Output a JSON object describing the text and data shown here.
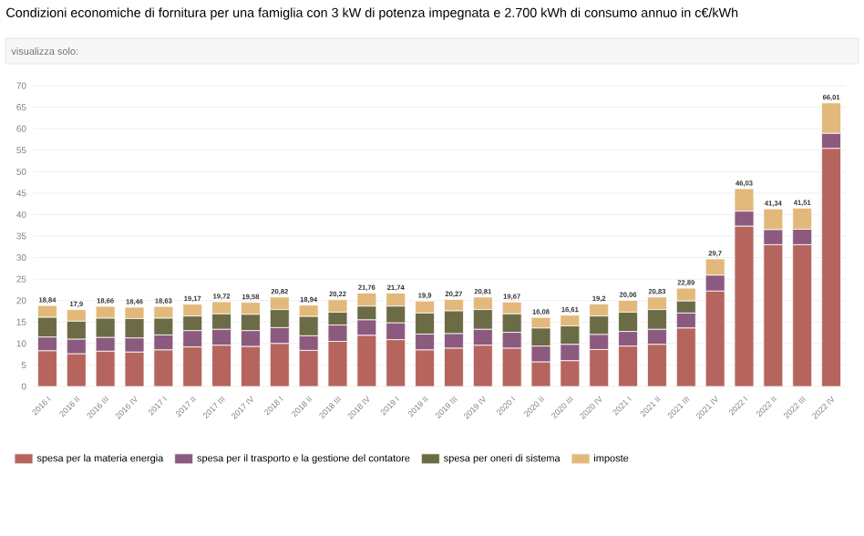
{
  "chart_data": {
    "type": "bar",
    "stacked": true,
    "title": "Condizioni economiche di fornitura per una famiglia con 3 kW di potenza impegnata e 2.700 kWh di consumo annuo in c€/kWh",
    "annotations": [
      "visualizza solo:"
    ],
    "categories": [
      "2016 I",
      "2016 II",
      "2016 III",
      "2016 IV",
      "2017 I",
      "2017 II",
      "2017 III",
      "2017 IV",
      "2018 I",
      "2018 II",
      "2018 III",
      "2018 IV",
      "2019 I",
      "2019 II",
      "2019 III",
      "2019 IV",
      "2020 I",
      "2020 II",
      "2020 III",
      "2020 IV",
      "2021 I",
      "2021 II",
      "2021 III",
      "2021 IV",
      "2022 I",
      "2022 II",
      "2022 III",
      "2022 IV"
    ],
    "series": [
      {
        "name": "spesa per la materia energia",
        "color": "#b5655e",
        "values": [
          8.3,
          7.6,
          8.2,
          8.0,
          8.5,
          9.2,
          9.6,
          9.3,
          10.0,
          8.4,
          10.5,
          11.9,
          10.9,
          8.5,
          8.9,
          9.6,
          8.9,
          5.7,
          6.0,
          8.6,
          9.4,
          9.8,
          13.6,
          22.2,
          37.3,
          33.0,
          33.0,
          55.4
        ]
      },
      {
        "name": "spesa per il trasporto e la gestione del contatore",
        "color": "#8c5a7e",
        "values": [
          3.2,
          3.4,
          3.2,
          3.3,
          3.5,
          3.8,
          3.7,
          3.7,
          3.7,
          3.4,
          3.8,
          3.6,
          3.9,
          3.7,
          3.4,
          3.7,
          3.7,
          3.7,
          3.8,
          3.5,
          3.4,
          3.5,
          3.5,
          3.7,
          3.5,
          3.5,
          3.6,
          3.5
        ]
      },
      {
        "name": "spesa per oneri di sistema",
        "color": "#6b6b45",
        "values": [
          4.6,
          4.2,
          4.5,
          4.5,
          3.9,
          3.4,
          3.6,
          3.8,
          4.2,
          4.5,
          3.0,
          3.2,
          3.9,
          4.9,
          5.3,
          4.6,
          4.3,
          4.2,
          4.3,
          4.3,
          4.5,
          4.6,
          2.8,
          0,
          0,
          0,
          0,
          0
        ]
      },
      {
        "name": "imposte",
        "color": "#e2b97a",
        "values": [
          2.74,
          2.7,
          2.76,
          2.66,
          2.73,
          2.77,
          2.82,
          2.78,
          2.92,
          2.64,
          2.92,
          3.06,
          3.04,
          2.8,
          2.67,
          2.91,
          2.77,
          2.48,
          2.51,
          2.8,
          2.76,
          2.93,
          2.99,
          3.8,
          5.23,
          4.84,
          4.91,
          7.11
        ]
      }
    ],
    "totals": [
      "18,84",
      "17,9",
      "18,66",
      "18,46",
      "18,63",
      "19,17",
      "19,72",
      "19,58",
      "20,82",
      "18,94",
      "20,22",
      "21,76",
      "21,74",
      "19,9",
      "20,27",
      "20,81",
      "19,67",
      "16,08",
      "16,61",
      "19,2",
      "20,06",
      "20,83",
      "22,89",
      "29,7",
      "46,03",
      "41,34",
      "41,51",
      "66,01"
    ],
    "ylim": [
      0,
      70
    ],
    "yticks": [
      0,
      5,
      10,
      15,
      20,
      25,
      30,
      35,
      40,
      45,
      50,
      55,
      60,
      65,
      70
    ],
    "grid": "y",
    "legend": "bottom"
  }
}
